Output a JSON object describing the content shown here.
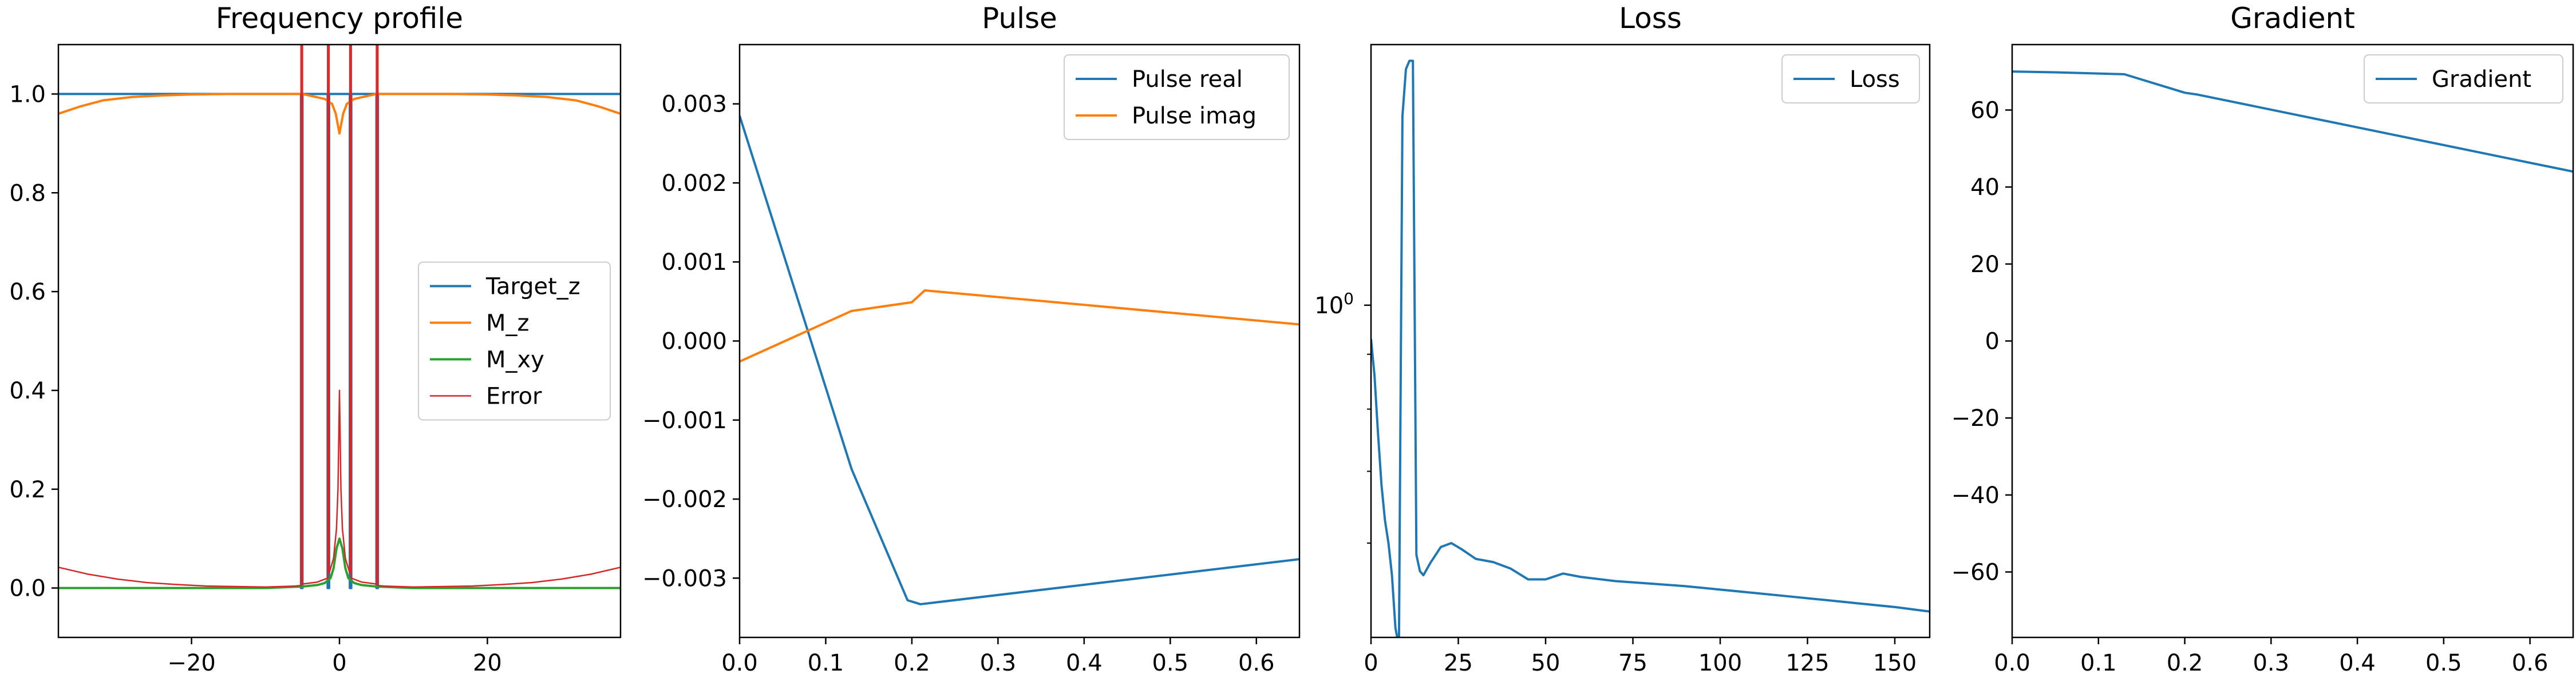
{
  "figure": {
    "panels": [
      {
        "title": "Frequency profile"
      },
      {
        "title": "Pulse"
      },
      {
        "title": "Loss"
      },
      {
        "title": "Gradient"
      }
    ]
  },
  "colors": {
    "blue": "#1f77b4",
    "orange": "#ff7f0e",
    "green": "#2ca02c",
    "red": "#d62728",
    "axes": "#000000",
    "background": "#ffffff"
  },
  "chart_data": [
    {
      "type": "line",
      "title": "Frequency profile",
      "xlabel": "",
      "ylabel": "",
      "xlim": [
        -38,
        38
      ],
      "ylim": [
        -0.1,
        1.1
      ],
      "xticks": [
        -20,
        0,
        20
      ],
      "xtick_labels": [
        "−20",
        "0",
        "20"
      ],
      "yticks": [
        0.0,
        0.2,
        0.4,
        0.6,
        0.8,
        1.0
      ],
      "ytick_labels": [
        "0.0",
        "0.2",
        "0.4",
        "0.6",
        "0.8",
        "1.0"
      ],
      "legend": {
        "position": "center-right",
        "entries": [
          "Target_z",
          "M_z",
          "M_xy",
          "Error"
        ]
      },
      "series": [
        {
          "name": "Target_z",
          "color": "#1f77b4",
          "x": [
            -38,
            -5.2,
            -5.2,
            -5.0,
            -5.0,
            -1.6,
            -1.6,
            -1.4,
            -1.4,
            1.4,
            1.4,
            1.6,
            1.6,
            5.0,
            5.0,
            5.2,
            5.2,
            38
          ],
          "y": [
            1,
            1,
            0,
            0,
            1,
            1,
            0,
            0,
            1,
            1,
            0,
            0,
            1,
            1,
            0,
            0,
            1,
            1
          ]
        },
        {
          "name": "M_z",
          "color": "#ff7f0e",
          "x": [
            -38,
            -35,
            -32,
            -28,
            -24,
            -20,
            -15,
            -10,
            -5,
            -2,
            -1,
            -0.5,
            0,
            0.5,
            1,
            2,
            5,
            10,
            15,
            20,
            24,
            28,
            32,
            35,
            38
          ],
          "y": [
            0.96,
            0.975,
            0.987,
            0.994,
            0.997,
            0.999,
            1.0,
            1.0,
            1.0,
            0.99,
            0.98,
            0.96,
            0.92,
            0.96,
            0.98,
            0.99,
            1.0,
            1.0,
            1.0,
            0.999,
            0.997,
            0.994,
            0.987,
            0.975,
            0.96
          ]
        },
        {
          "name": "M_xy",
          "color": "#2ca02c",
          "x": [
            -38,
            -10,
            -5,
            -3,
            -2,
            -1.2,
            -0.8,
            -0.4,
            0,
            0.4,
            0.8,
            1.2,
            2,
            3,
            5,
            10,
            38
          ],
          "y": [
            0.0,
            0.0,
            0.003,
            0.006,
            0.01,
            0.02,
            0.04,
            0.08,
            0.1,
            0.08,
            0.04,
            0.02,
            0.01,
            0.006,
            0.003,
            0.0,
            0.0
          ]
        },
        {
          "name": "Error",
          "color": "#d62728",
          "x": [
            -38,
            -34,
            -30,
            -26,
            -22,
            -18,
            -14,
            -10,
            -6,
            -5.2,
            -5.2,
            -5.0,
            -5.0,
            -3,
            -1.6,
            -1.6,
            -1.4,
            -1.4,
            -0.8,
            -0.4,
            -0.2,
            0,
            0.2,
            0.4,
            0.8,
            1.4,
            1.4,
            1.6,
            1.6,
            3,
            5.0,
            5.0,
            5.2,
            5.2,
            6,
            10,
            14,
            18,
            22,
            26,
            30,
            34,
            38
          ],
          "y": [
            0.042,
            0.028,
            0.018,
            0.011,
            0.007,
            0.004,
            0.003,
            0.002,
            0.004,
            0.005,
            1.1,
            1.1,
            0.008,
            0.012,
            0.02,
            1.1,
            1.1,
            0.03,
            0.06,
            0.12,
            0.2,
            0.4,
            0.2,
            0.12,
            0.06,
            0.03,
            1.1,
            1.1,
            0.02,
            0.012,
            0.008,
            1.1,
            1.1,
            0.005,
            0.004,
            0.002,
            0.003,
            0.004,
            0.007,
            0.011,
            0.018,
            0.028,
            0.042
          ]
        }
      ]
    },
    {
      "type": "line",
      "title": "Pulse",
      "xlabel": "",
      "ylabel": "",
      "xlim": [
        0,
        0.65
      ],
      "ylim": [
        -0.00375,
        0.00375
      ],
      "xticks": [
        0.0,
        0.1,
        0.2,
        0.3,
        0.4,
        0.5,
        0.6
      ],
      "xtick_labels": [
        "0.0",
        "0.1",
        "0.2",
        "0.3",
        "0.4",
        "0.5",
        "0.6"
      ],
      "yticks": [
        -0.003,
        -0.002,
        -0.001,
        0.0,
        0.001,
        0.002,
        0.003
      ],
      "ytick_labels": [
        "−0.003",
        "−0.002",
        "−0.001",
        "0.000",
        "0.001",
        "0.002",
        "0.003"
      ],
      "legend": {
        "position": "top-right",
        "entries": [
          "Pulse real",
          "Pulse imag"
        ]
      },
      "series": [
        {
          "name": "Pulse real",
          "color": "#1f77b4",
          "x": [
            0.0,
            0.13,
            0.195,
            0.21,
            0.65
          ],
          "y": [
            0.00285,
            -0.00162,
            -0.00328,
            -0.00333,
            -0.00276
          ]
        },
        {
          "name": "Pulse imag",
          "color": "#ff7f0e",
          "x": [
            0.0,
            0.13,
            0.2,
            0.215,
            0.65
          ],
          "y": [
            -0.00026,
            0.00038,
            0.00049,
            0.00064,
            0.00021
          ]
        }
      ]
    },
    {
      "type": "line",
      "title": "Loss",
      "xlabel": "",
      "ylabel": "",
      "xlim": [
        0,
        160
      ],
      "ylim": [
        0.49,
        1.75
      ],
      "yscale": "log",
      "xticks": [
        0,
        25,
        50,
        75,
        100,
        125,
        150
      ],
      "xtick_labels": [
        "0",
        "25",
        "50",
        "75",
        "100",
        "125",
        "150"
      ],
      "yticks": [
        1.0
      ],
      "ytick_labels": [
        "10"
      ],
      "ytick_exponents": [
        "0"
      ],
      "yminorticks": [
        0.6,
        0.7,
        0.8,
        0.9,
        2.0
      ],
      "legend": {
        "position": "top-right",
        "entries": [
          "Loss"
        ]
      },
      "series": [
        {
          "name": "Loss",
          "color": "#1f77b4",
          "x": [
            0,
            1,
            2,
            3,
            4,
            5,
            6,
            7,
            8,
            9,
            10,
            11,
            12,
            13,
            14,
            15,
            17,
            20,
            23,
            26,
            30,
            35,
            40,
            45,
            50,
            55,
            60,
            70,
            80,
            90,
            100,
            110,
            120,
            130,
            140,
            150,
            160
          ],
          "y": [
            0.93,
            0.86,
            0.76,
            0.68,
            0.63,
            0.6,
            0.56,
            0.5,
            0.48,
            1.5,
            1.66,
            1.69,
            1.69,
            0.585,
            0.565,
            0.56,
            0.575,
            0.595,
            0.6,
            0.592,
            0.58,
            0.576,
            0.568,
            0.555,
            0.555,
            0.562,
            0.558,
            0.553,
            0.55,
            0.547,
            0.543,
            0.539,
            0.535,
            0.531,
            0.527,
            0.523,
            0.518
          ]
        }
      ]
    },
    {
      "type": "line",
      "title": "Gradient",
      "xlabel": "",
      "ylabel": "",
      "xlim": [
        0,
        0.65
      ],
      "ylim": [
        -77,
        77
      ],
      "xticks": [
        0.0,
        0.1,
        0.2,
        0.3,
        0.4,
        0.5,
        0.6
      ],
      "xtick_labels": [
        "0.0",
        "0.1",
        "0.2",
        "0.3",
        "0.4",
        "0.5",
        "0.6"
      ],
      "yticks": [
        -60,
        -40,
        -20,
        0,
        20,
        40,
        60
      ],
      "ytick_labels": [
        "−60",
        "−40",
        "−20",
        "0",
        "20",
        "40",
        "60"
      ],
      "legend": {
        "position": "top-right",
        "entries": [
          "Gradient"
        ]
      },
      "series": [
        {
          "name": "Gradient",
          "color": "#1f77b4",
          "x": [
            0.0,
            0.05,
            0.13,
            0.2,
            0.215,
            0.65
          ],
          "y": [
            70,
            69.8,
            69.3,
            64.5,
            64.0,
            44
          ]
        }
      ]
    }
  ]
}
